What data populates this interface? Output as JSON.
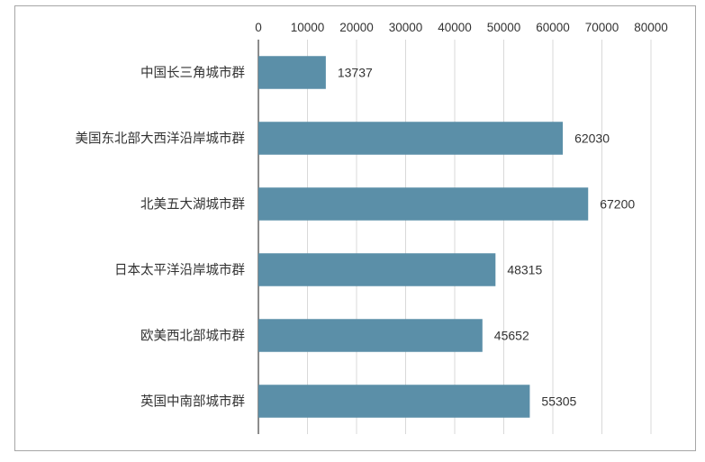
{
  "chart_data": {
    "type": "bar",
    "orientation": "horizontal",
    "categories": [
      "中国长三角城市群",
      "美国东北部大西洋沿岸城市群",
      "北美五大湖城市群",
      "日本太平洋沿岸城市群",
      "欧美西北部城市群",
      "英国中南部城市群"
    ],
    "values": [
      13737,
      62030,
      67200,
      48315,
      45652,
      55305
    ],
    "data_labels": [
      "13737",
      "62030",
      "67200",
      "48315",
      "45652",
      "55305"
    ],
    "x_ticks": [
      "0",
      "10000",
      "20000",
      "30000",
      "40000",
      "50000",
      "60000",
      "70000",
      "80000"
    ],
    "xlim": [
      0,
      80000
    ],
    "x_axis_position": "top",
    "grid": true,
    "legend": "none",
    "bar_color": "#5b8fa8"
  }
}
